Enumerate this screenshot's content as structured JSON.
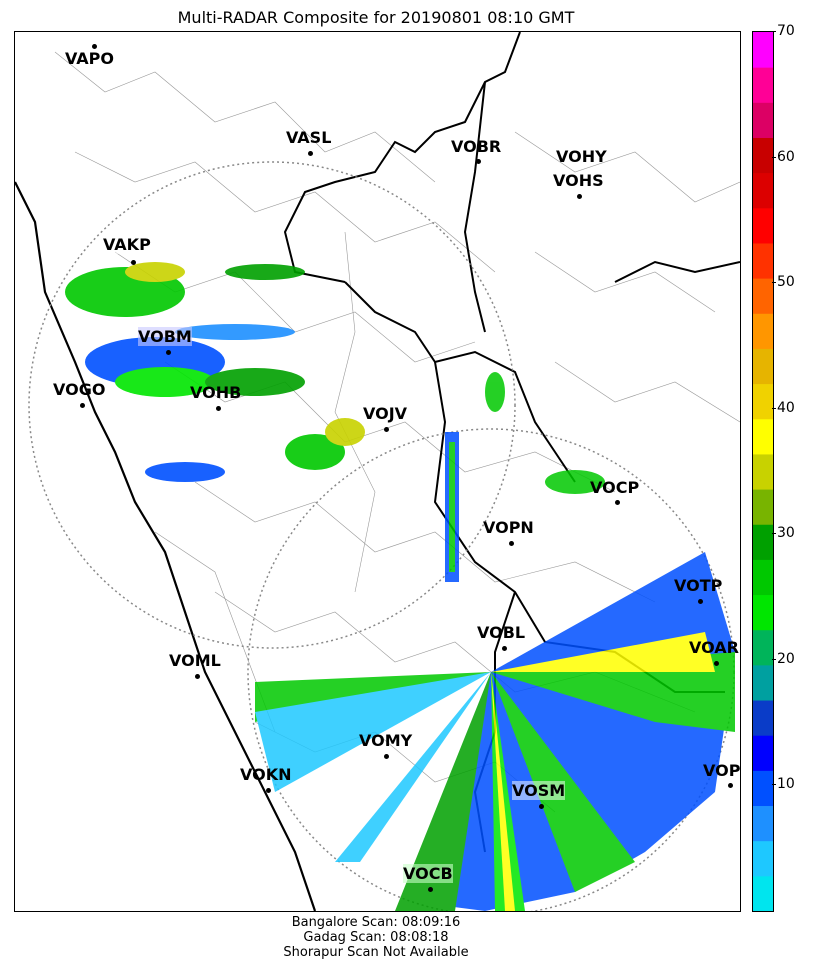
{
  "title": "Multi-RADAR Composite for 20190801 08:10 GMT",
  "stations": [
    {
      "code": "VAPO"
    },
    {
      "code": "VASL"
    },
    {
      "code": "VOBR"
    },
    {
      "code": "VOHY"
    },
    {
      "code": "VOHS"
    },
    {
      "code": "VAKP"
    },
    {
      "code": "VOBM"
    },
    {
      "code": "VOGO"
    },
    {
      "code": "VOHB"
    },
    {
      "code": "VOJV"
    },
    {
      "code": "VOCP"
    },
    {
      "code": "VOPN"
    },
    {
      "code": "VOTP"
    },
    {
      "code": "VOBL"
    },
    {
      "code": "VOAR"
    },
    {
      "code": "VOML"
    },
    {
      "code": "VOMY"
    },
    {
      "code": "VOKN"
    },
    {
      "code": "VOPC"
    },
    {
      "code": "VOSM"
    },
    {
      "code": "VOCB"
    }
  ],
  "colorbar": {
    "min": 0,
    "max": 70,
    "ticks": [
      "10",
      "20",
      "30",
      "40",
      "50",
      "60",
      "70"
    ],
    "colors": [
      "#00e5ee",
      "#1ec8ff",
      "#1e90ff",
      "#0050ff",
      "#0000ff",
      "#0a3cc8",
      "#00a0a0",
      "#00b45a",
      "#00e600",
      "#00c800",
      "#00a000",
      "#78b400",
      "#c8d200",
      "#ffff00",
      "#f0d200",
      "#e6b400",
      "#ff9600",
      "#ff6400",
      "#ff3200",
      "#ff0000",
      "#dc0000",
      "#c80000",
      "#dc0064",
      "#ff0096",
      "#ff00ff"
    ]
  },
  "footer": {
    "line1": "Bangalore Scan: 08:09:16",
    "line2": "Gadag Scan: 08:08:18",
    "line3": "Shorapur Scan Not Available"
  }
}
